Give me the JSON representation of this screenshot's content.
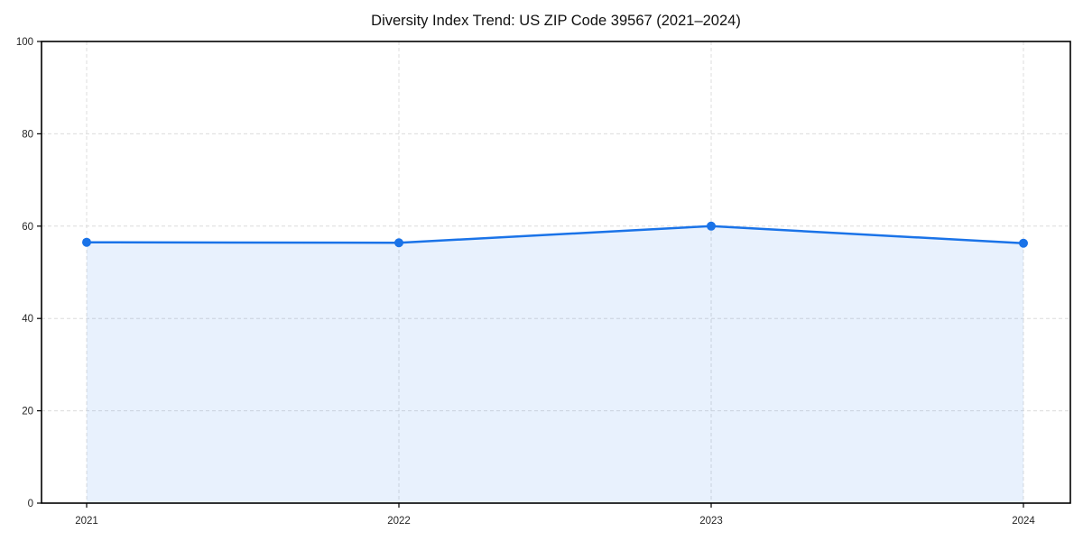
{
  "title": "Diversity Index Trend: US ZIP Code 39567 (2021–2024)",
  "chart_data": {
    "type": "area",
    "title": "Diversity Index Trend: US ZIP Code 39567 (2021–2024)",
    "x": [
      "2021",
      "2022",
      "2023",
      "2024"
    ],
    "series": [
      {
        "name": "Diversity Index",
        "values": [
          56.5,
          56.4,
          60.0,
          56.3
        ]
      }
    ],
    "xlabel": "",
    "ylabel": "",
    "ylim": [
      0,
      100
    ],
    "yticks": [
      0,
      20,
      40,
      60,
      80,
      100
    ],
    "xticks": [
      "2021",
      "2022",
      "2023",
      "2024"
    ],
    "grid": true,
    "grid_style": "dashed",
    "legend": false,
    "colors": {
      "line": "#1a73e8",
      "marker": "#1a73e8",
      "fill": "rgba(26,115,232,0.10)",
      "grid": "#dcdcdc",
      "frame": "#000000",
      "tick_text": "#262626",
      "background": "#ffffff"
    }
  }
}
